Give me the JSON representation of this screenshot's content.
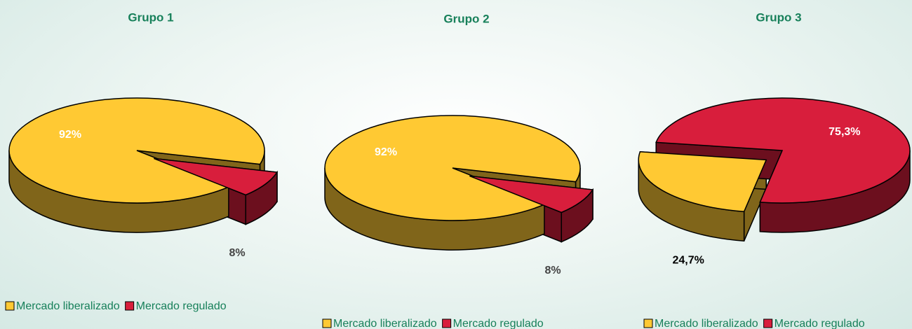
{
  "chart_data": [
    {
      "type": "pie",
      "title": "Grupo 1",
      "categories": [
        "Mercado liberalizado",
        "Mercado regulado"
      ],
      "values": [
        92,
        8
      ],
      "value_labels": [
        "92%",
        "8%"
      ],
      "colors": [
        "#ffc933",
        "#d81e3c"
      ]
    },
    {
      "type": "pie",
      "title": "Grupo 2",
      "categories": [
        "Mercado liberalizado",
        "Mercado regulado"
      ],
      "values": [
        92,
        8
      ],
      "value_labels": [
        "92%",
        "8%"
      ],
      "colors": [
        "#ffc933",
        "#d81e3c"
      ]
    },
    {
      "type": "pie",
      "title": "Grupo 3",
      "categories": [
        "Mercado liberalizado",
        "Mercado regulado"
      ],
      "values": [
        24.7,
        75.3
      ],
      "value_labels": [
        "24,7%",
        "75,3%"
      ],
      "colors": [
        "#ffc933",
        "#d81e3c"
      ]
    }
  ]
}
